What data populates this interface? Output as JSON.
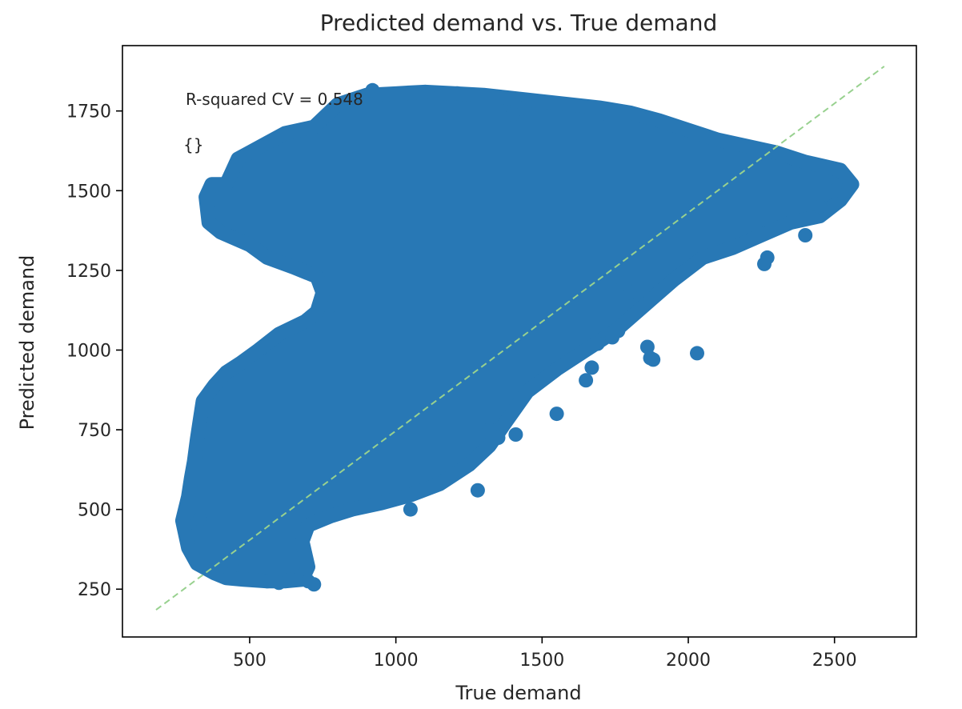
{
  "chart_data": {
    "type": "scatter",
    "title": "Predicted demand vs. True demand",
    "xlabel": "True demand",
    "ylabel": "Predicted demand",
    "xlim": [
      65,
      2780
    ],
    "ylim": [
      100,
      1955
    ],
    "xticks": [
      500,
      1000,
      1500,
      2000,
      2500
    ],
    "yticks": [
      250,
      500,
      750,
      1000,
      1250,
      1500,
      1750
    ],
    "grid": false,
    "annotations": [
      "R-squared CV = 0.548",
      "{}"
    ],
    "marker_color": "#2878b5",
    "reference_line": {
      "x": [
        180,
        2670
      ],
      "y": [
        185,
        1890
      ],
      "color": "#98d18f",
      "style": "dashed"
    },
    "cloud_outline": [
      [
        270,
        465
      ],
      [
        290,
        380
      ],
      [
        320,
        330
      ],
      [
        380,
        300
      ],
      [
        420,
        285
      ],
      [
        480,
        280
      ],
      [
        560,
        275
      ],
      [
        620,
        275
      ],
      [
        680,
        280
      ],
      [
        700,
        320
      ],
      [
        680,
        400
      ],
      [
        700,
        450
      ],
      [
        780,
        480
      ],
      [
        850,
        500
      ],
      [
        950,
        520
      ],
      [
        1050,
        545
      ],
      [
        1150,
        580
      ],
      [
        1250,
        640
      ],
      [
        1320,
        700
      ],
      [
        1380,
        780
      ],
      [
        1450,
        870
      ],
      [
        1550,
        940
      ],
      [
        1650,
        1000
      ],
      [
        1750,
        1060
      ],
      [
        1850,
        1140
      ],
      [
        1950,
        1220
      ],
      [
        2050,
        1290
      ],
      [
        2150,
        1320
      ],
      [
        2250,
        1360
      ],
      [
        2350,
        1400
      ],
      [
        2450,
        1420
      ],
      [
        2520,
        1470
      ],
      [
        2560,
        1520
      ],
      [
        2520,
        1565
      ],
      [
        2400,
        1590
      ],
      [
        2300,
        1620
      ],
      [
        2200,
        1640
      ],
      [
        2100,
        1660
      ],
      [
        2000,
        1690
      ],
      [
        1900,
        1720
      ],
      [
        1800,
        1745
      ],
      [
        1700,
        1760
      ],
      [
        1600,
        1770
      ],
      [
        1500,
        1780
      ],
      [
        1400,
        1790
      ],
      [
        1300,
        1800
      ],
      [
        1200,
        1805
      ],
      [
        1100,
        1810
      ],
      [
        1000,
        1805
      ],
      [
        900,
        1800
      ],
      [
        800,
        1770
      ],
      [
        720,
        1700
      ],
      [
        620,
        1680
      ],
      [
        560,
        1650
      ],
      [
        500,
        1620
      ],
      [
        460,
        1600
      ],
      [
        440,
        1560
      ],
      [
        420,
        1520
      ],
      [
        370,
        1520
      ],
      [
        350,
        1480
      ],
      [
        360,
        1400
      ],
      [
        400,
        1370
      ],
      [
        500,
        1330
      ],
      [
        560,
        1290
      ],
      [
        650,
        1260
      ],
      [
        730,
        1230
      ],
      [
        750,
        1180
      ],
      [
        730,
        1120
      ],
      [
        690,
        1090
      ],
      [
        600,
        1050
      ],
      [
        530,
        1000
      ],
      [
        470,
        960
      ],
      [
        420,
        930
      ],
      [
        380,
        890
      ],
      [
        340,
        840
      ],
      [
        330,
        780
      ],
      [
        320,
        720
      ],
      [
        310,
        650
      ],
      [
        300,
        600
      ],
      [
        290,
        540
      ]
    ],
    "x": [
      920,
      1210,
      1140,
      1400,
      1440,
      1630,
      1700,
      1840,
      1690,
      1740,
      1760,
      1860,
      1880,
      1870,
      2030,
      1650,
      1670,
      1350,
      1410,
      2260,
      2400,
      2270,
      1320,
      1870,
      1800,
      1780,
      600,
      640,
      700,
      560,
      720,
      440,
      400,
      330,
      420,
      1050,
      1280,
      1550,
      800,
      1000,
      2500,
      2450
    ],
    "y": [
      1815,
      1805,
      1790,
      1740,
      1760,
      1680,
      1700,
      1560,
      1020,
      1040,
      1060,
      1010,
      970,
      975,
      990,
      905,
      945,
      725,
      735,
      1270,
      1360,
      1290,
      750,
      1160,
      1180,
      1210,
      270,
      280,
      275,
      275,
      265,
      330,
      320,
      470,
      610,
      500,
      560,
      800,
      1100,
      1300,
      1500,
      1450
    ]
  }
}
